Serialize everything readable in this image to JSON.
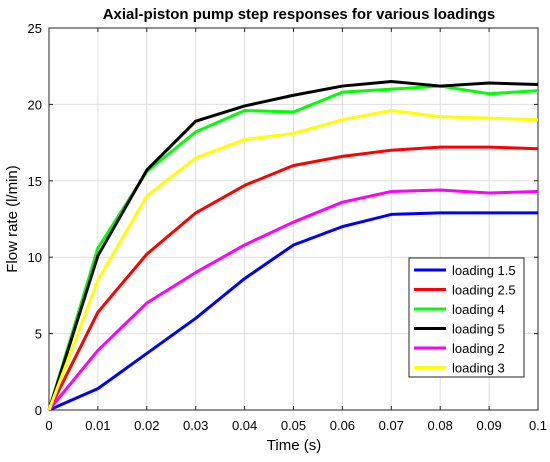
{
  "chart_data": {
    "type": "line",
    "title": "Axial-piston pump step responses for various loadings",
    "xlabel": "Time (s)",
    "ylabel": "Flow rate (l/min)",
    "xlim": [
      0,
      0.1
    ],
    "ylim": [
      0,
      25
    ],
    "x_ticks": [
      "0",
      "0.01",
      "0.02",
      "0.03",
      "0.04",
      "0.05",
      "0.06",
      "0.07",
      "0.08",
      "0.09",
      "0.1"
    ],
    "y_ticks": [
      "0",
      "5",
      "10",
      "15",
      "20",
      "25"
    ],
    "grid": true,
    "legend_position": "bottom-right",
    "x": [
      0,
      0.01,
      0.02,
      0.03,
      0.04,
      0.05,
      0.06,
      0.07,
      0.08,
      0.09,
      0.1
    ],
    "series": [
      {
        "name": "loading 1.5",
        "color": "#0000ff",
        "values": [
          0,
          1.4,
          3.7,
          6.0,
          8.6,
          10.8,
          12.0,
          12.8,
          12.9,
          12.9,
          12.9
        ]
      },
      {
        "name": "loading 2.5",
        "color": "#ff0000",
        "values": [
          0,
          6.4,
          10.2,
          12.9,
          14.7,
          16.0,
          16.6,
          17.0,
          17.2,
          17.2,
          17.1
        ]
      },
      {
        "name": "loading 4",
        "color": "#00ff00",
        "values": [
          0,
          10.6,
          15.6,
          18.2,
          19.6,
          19.5,
          20.8,
          21.0,
          21.2,
          20.7,
          20.9
        ]
      },
      {
        "name": "loading 5",
        "color": "#000000",
        "values": [
          0,
          10.1,
          15.7,
          18.9,
          19.9,
          20.6,
          21.2,
          21.5,
          21.2,
          21.4,
          21.3
        ]
      },
      {
        "name": "loading 2",
        "color": "#ff00ff",
        "values": [
          0,
          3.9,
          7.0,
          9.0,
          10.8,
          12.3,
          13.6,
          14.3,
          14.4,
          14.2,
          14.3
        ]
      },
      {
        "name": "loading 3",
        "color": "#ffff00",
        "values": [
          0,
          8.5,
          14.0,
          16.5,
          17.7,
          18.1,
          19.0,
          19.6,
          19.2,
          19.1,
          19.0
        ]
      }
    ]
  }
}
